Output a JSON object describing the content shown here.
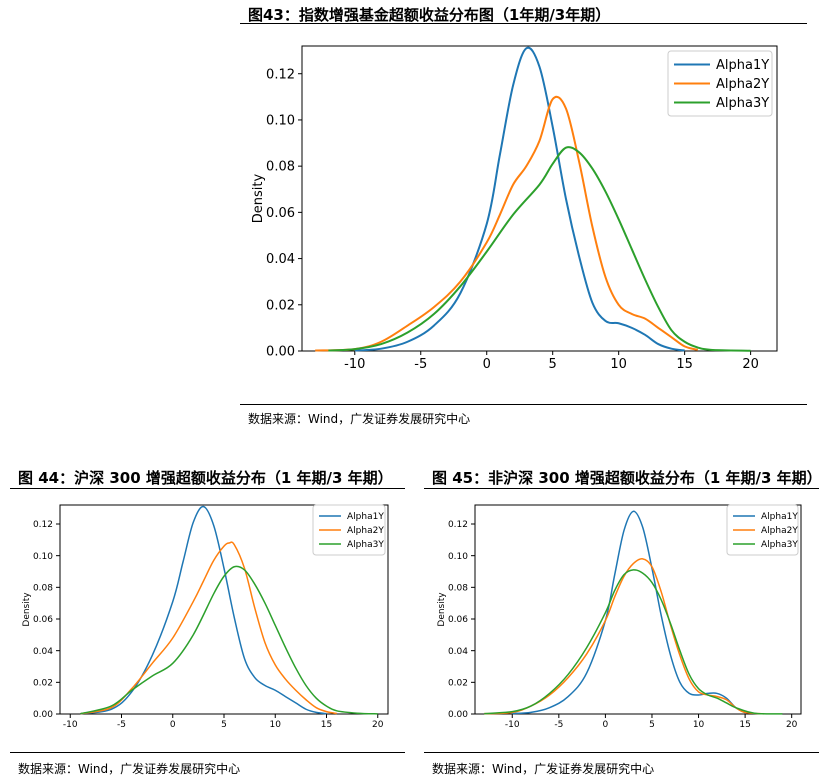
{
  "figures": [
    {
      "title": "图43：指数增强基金超额收益分布图（1年期/3年期）",
      "source": "数据来源：Wind，广发证券发展研究中心",
      "chart_data": {
        "type": "line",
        "title": "",
        "xlabel": "",
        "ylabel": "Density",
        "xlim": [
          -14,
          22
        ],
        "ylim": [
          0,
          0.132
        ],
        "xticks": [
          "-10",
          "-5",
          "0",
          "5",
          "10",
          "15",
          "20"
        ],
        "yticks": [
          "0.00",
          "0.02",
          "0.04",
          "0.06",
          "0.08",
          "0.10",
          "0.12"
        ],
        "legend_position": "top-right",
        "series": [
          {
            "name": "Alpha1Y",
            "color": "#1f77b4",
            "x": [
              -10,
              -8,
              -6,
              -4,
              -2,
              0,
              1,
              2,
              3,
              4,
              5,
              6,
              7,
              8,
              9,
              10,
              11,
              12,
              13,
              14,
              15
            ],
            "y": [
              0.0002,
              0.001,
              0.004,
              0.011,
              0.025,
              0.055,
              0.085,
              0.115,
              0.131,
              0.123,
              0.097,
              0.066,
              0.041,
              0.021,
              0.013,
              0.012,
              0.01,
              0.007,
              0.003,
              0.001,
              0.0002
            ]
          },
          {
            "name": "Alpha2Y",
            "color": "#ff7f0e",
            "x": [
              -13,
              -10,
              -8,
              -6,
              -4,
              -2,
              0,
              1,
              2,
              3,
              4,
              5,
              6,
              7,
              8,
              9,
              10,
              11,
              12,
              13,
              14,
              15,
              16
            ],
            "y": [
              0.0002,
              0.0008,
              0.004,
              0.011,
              0.019,
              0.03,
              0.047,
              0.059,
              0.072,
              0.08,
              0.091,
              0.109,
              0.105,
              0.082,
              0.054,
              0.032,
              0.02,
              0.016,
              0.014,
              0.01,
              0.006,
              0.002,
              0.0005
            ]
          },
          {
            "name": "Alpha3Y",
            "color": "#2ca02c",
            "x": [
              -12,
              -10,
              -8,
              -6,
              -4,
              -2,
              0,
              2,
              4,
              5,
              6,
              7,
              8,
              9,
              10,
              11,
              12,
              13,
              14,
              15,
              16,
              17,
              20
            ],
            "y": [
              0.0002,
              0.0008,
              0.003,
              0.008,
              0.016,
              0.028,
              0.043,
              0.059,
              0.072,
              0.081,
              0.088,
              0.086,
              0.079,
              0.069,
              0.057,
              0.044,
              0.031,
              0.019,
              0.009,
              0.004,
              0.0015,
              0.0005,
              0.0001
            ]
          }
        ]
      }
    },
    {
      "title": "图 44：沪深 300 增强超额收益分布（1 年期/3 年期）",
      "source": "数据来源：Wind，广发证券发展研究中心",
      "chart_data": {
        "type": "line",
        "title": "",
        "xlabel": "",
        "ylabel": "Density",
        "xlim": [
          -11,
          21
        ],
        "ylim": [
          0,
          0.132
        ],
        "xticks": [
          "-10",
          "-5",
          "0",
          "5",
          "10",
          "15",
          "20"
        ],
        "yticks": [
          "0.00",
          "0.02",
          "0.04",
          "0.06",
          "0.08",
          "0.10",
          "0.12"
        ],
        "legend_position": "top-right",
        "series": [
          {
            "name": "Alpha1Y",
            "color": "#1f77b4",
            "x": [
              -9,
              -6,
              -4,
              -2,
              0,
              1,
              2,
              3,
              4,
              5,
              6,
              7,
              8,
              9,
              10,
              11,
              12,
              13,
              14,
              15
            ],
            "y": [
              0.0002,
              0.003,
              0.014,
              0.037,
              0.071,
              0.096,
              0.121,
              0.131,
              0.119,
              0.092,
              0.061,
              0.035,
              0.023,
              0.018,
              0.015,
              0.011,
              0.007,
              0.003,
              0.001,
              0.0002
            ]
          },
          {
            "name": "Alpha2Y",
            "color": "#ff7f0e",
            "x": [
              -9,
              -6,
              -4,
              -2,
              0,
              2,
              3,
              4,
              5,
              5.5,
              6,
              7,
              8,
              9,
              10,
              11,
              12,
              13,
              14,
              15,
              16
            ],
            "y": [
              0.0002,
              0.004,
              0.016,
              0.032,
              0.048,
              0.071,
              0.084,
              0.097,
              0.106,
              0.108,
              0.107,
              0.092,
              0.067,
              0.045,
              0.031,
              0.022,
              0.015,
              0.009,
              0.004,
              0.0015,
              0.0003
            ]
          },
          {
            "name": "Alpha3Y",
            "color": "#2ca02c",
            "x": [
              -9,
              -6,
              -4,
              -2,
              0,
              2,
              4,
              5,
              6,
              7,
              8,
              9,
              10,
              11,
              12,
              13,
              14,
              15,
              16,
              18,
              20
            ],
            "y": [
              0.0002,
              0.005,
              0.015,
              0.024,
              0.032,
              0.05,
              0.076,
              0.087,
              0.093,
              0.091,
              0.082,
              0.07,
              0.056,
              0.042,
              0.029,
              0.018,
              0.01,
              0.005,
              0.002,
              0.0005,
              0.0001
            ]
          }
        ]
      }
    },
    {
      "title": "图 45：非沪深 300 增强超额收益分布（1 年期/3 年期）",
      "source": "数据来源：Wind，广发证券发展研究中心",
      "chart_data": {
        "type": "line",
        "title": "",
        "xlabel": "",
        "ylabel": "Density",
        "xlim": [
          -14,
          21
        ],
        "ylim": [
          0,
          0.132
        ],
        "xticks": [
          "-10",
          "-5",
          "0",
          "5",
          "10",
          "15",
          "20"
        ],
        "yticks": [
          "0.00",
          "0.02",
          "0.04",
          "0.06",
          "0.08",
          "0.10",
          "0.12"
        ],
        "legend_position": "top-right",
        "series": [
          {
            "name": "Alpha1Y",
            "color": "#1f77b4",
            "x": [
              -10,
              -8,
              -6,
              -4,
              -2,
              0,
              1,
              2,
              3,
              4,
              5,
              6,
              7,
              8,
              9,
              10,
              11,
              12,
              13,
              14,
              15
            ],
            "y": [
              0.0003,
              0.001,
              0.004,
              0.011,
              0.026,
              0.059,
              0.088,
              0.116,
              0.128,
              0.118,
              0.092,
              0.062,
              0.037,
              0.02,
              0.013,
              0.012,
              0.013,
              0.013,
              0.01,
              0.004,
              0.0008
            ]
          },
          {
            "name": "Alpha2Y",
            "color": "#ff7f0e",
            "x": [
              -13,
              -10,
              -8,
              -6,
              -4,
              -2,
              0,
              1,
              2,
              3,
              4,
              5,
              6,
              7,
              8,
              9,
              10,
              11,
              12,
              13,
              14,
              15,
              17
            ],
            "y": [
              0.0002,
              0.001,
              0.005,
              0.012,
              0.023,
              0.038,
              0.059,
              0.074,
              0.087,
              0.095,
              0.098,
              0.093,
              0.077,
              0.056,
              0.037,
              0.022,
              0.014,
              0.012,
              0.011,
              0.009,
              0.004,
              0.001,
              0.0001
            ]
          },
          {
            "name": "Alpha3Y",
            "color": "#2ca02c",
            "x": [
              -13,
              -10,
              -8,
              -6,
              -4,
              -2,
              0,
              1,
              2,
              3,
              4,
              5,
              6,
              7,
              8,
              9,
              10,
              11,
              12,
              13,
              14,
              16,
              19
            ],
            "y": [
              0.0002,
              0.0015,
              0.005,
              0.013,
              0.025,
              0.042,
              0.064,
              0.078,
              0.088,
              0.091,
              0.089,
              0.083,
              0.072,
              0.057,
              0.04,
              0.025,
              0.016,
              0.012,
              0.01,
              0.007,
              0.004,
              0.0005,
              0.0001
            ]
          }
        ]
      }
    }
  ]
}
